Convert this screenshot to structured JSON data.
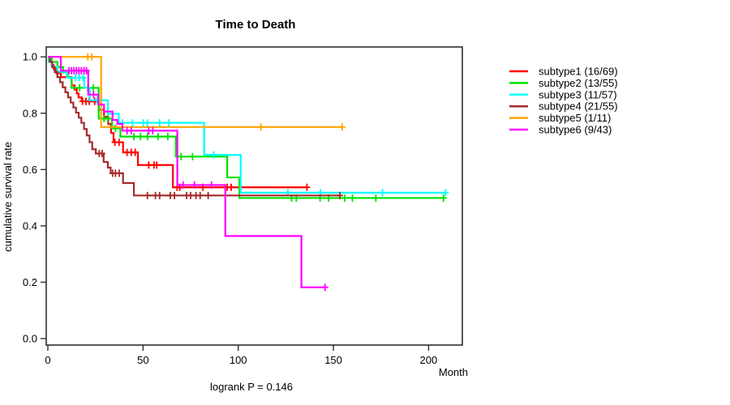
{
  "chart_data": {
    "type": "line",
    "variant": "kaplan-meier-step",
    "title": "Time to Death",
    "xlabel": "Month",
    "ylabel": "cumulative survival rate",
    "annotation": "logrank P = 0.146",
    "x_ticks": [
      0,
      50,
      100,
      150,
      200
    ],
    "y_ticks": [
      0,
      0.2,
      0.4,
      0.6,
      0.8,
      1
    ],
    "xlim": [
      0,
      217
    ],
    "ylim": [
      0,
      1.04
    ],
    "grid": false,
    "legend_position": "right-outside",
    "series": [
      {
        "name": "subtype1 (16/69)",
        "color": "#FF0000",
        "steps": [
          [
            0,
            1
          ],
          [
            1,
            0.986
          ],
          [
            2,
            0.971
          ],
          [
            3,
            0.957
          ],
          [
            4.5,
            0.942
          ],
          [
            6.8,
            0.928
          ],
          [
            12.5,
            0.899
          ],
          [
            14,
            0.884
          ],
          [
            15.2,
            0.87
          ],
          [
            16.1,
            0.856
          ],
          [
            17.8,
            0.842
          ],
          [
            26.7,
            0.812
          ],
          [
            29.5,
            0.787
          ],
          [
            31.7,
            0.762
          ],
          [
            33.2,
            0.73
          ],
          [
            34.5,
            0.697
          ],
          [
            39.5,
            0.661
          ],
          [
            47.3,
            0.616
          ],
          [
            65.7,
            0.537
          ]
        ],
        "end": 136.1,
        "censors": [
          [
            18.2,
            0.842
          ],
          [
            20,
            0.842
          ],
          [
            21.7,
            0.842
          ],
          [
            24.6,
            0.842
          ],
          [
            35.2,
            0.697
          ],
          [
            37.4,
            0.697
          ],
          [
            41.6,
            0.661
          ],
          [
            43.8,
            0.661
          ],
          [
            45.9,
            0.661
          ],
          [
            53,
            0.616
          ],
          [
            55.8,
            0.616
          ],
          [
            57.2,
            0.616
          ],
          [
            67.9,
            0.537
          ],
          [
            69.3,
            0.537
          ],
          [
            81.4,
            0.537
          ],
          [
            94.2,
            0.537
          ],
          [
            96.3,
            0.537
          ],
          [
            136.1,
            0.537
          ]
        ]
      },
      {
        "name": "subtype2 (13/55)",
        "color": "#00E000",
        "steps": [
          [
            0,
            1
          ],
          [
            2,
            0.982
          ],
          [
            5,
            0.964
          ],
          [
            8,
            0.945
          ],
          [
            10.5,
            0.927
          ],
          [
            12.4,
            0.89
          ],
          [
            26.7,
            0.781
          ],
          [
            33.7,
            0.746
          ],
          [
            38.1,
            0.717
          ],
          [
            67.2,
            0.646
          ],
          [
            94.2,
            0.572
          ],
          [
            100.6,
            0.499
          ]
        ],
        "end": 207.8,
        "censors": [
          [
            16.7,
            0.89
          ],
          [
            21,
            0.89
          ],
          [
            23.9,
            0.89
          ],
          [
            29.5,
            0.781
          ],
          [
            31.5,
            0.781
          ],
          [
            35.5,
            0.746
          ],
          [
            45.2,
            0.717
          ],
          [
            48.7,
            0.717
          ],
          [
            52.3,
            0.717
          ],
          [
            57.9,
            0.717
          ],
          [
            63,
            0.717
          ],
          [
            70,
            0.646
          ],
          [
            76,
            0.646
          ],
          [
            128,
            0.499
          ],
          [
            130.5,
            0.499
          ],
          [
            143,
            0.499
          ],
          [
            147.5,
            0.499
          ],
          [
            156,
            0.499
          ],
          [
            160,
            0.499
          ],
          [
            172.3,
            0.499
          ],
          [
            207.8,
            0.499
          ]
        ]
      },
      {
        "name": "subtype3 (11/57)",
        "color": "#00FFFF",
        "steps": [
          [
            0,
            1
          ],
          [
            0.4,
            0.982
          ],
          [
            2,
            0.965
          ],
          [
            5,
            0.947
          ],
          [
            10,
            0.926
          ],
          [
            19.2,
            0.89
          ],
          [
            22,
            0.846
          ],
          [
            31.5,
            0.798
          ],
          [
            37.2,
            0.766
          ],
          [
            82.1,
            0.652
          ],
          [
            101.3,
            0.518
          ]
        ],
        "end": 208.9,
        "censors": [
          [
            14.5,
            0.926
          ],
          [
            16.5,
            0.926
          ],
          [
            18.5,
            0.926
          ],
          [
            26,
            0.846
          ],
          [
            39.2,
            0.766
          ],
          [
            44.4,
            0.766
          ],
          [
            50.1,
            0.766
          ],
          [
            52.3,
            0.766
          ],
          [
            58.7,
            0.766
          ],
          [
            63.6,
            0.766
          ],
          [
            87.1,
            0.652
          ],
          [
            126.1,
            0.518
          ],
          [
            143.2,
            0.518
          ],
          [
            175.8,
            0.518
          ],
          [
            208.9,
            0.518
          ]
        ]
      },
      {
        "name": "subtype4 (21/55)",
        "color": "#A52A2A",
        "steps": [
          [
            0,
            1
          ],
          [
            1,
            0.982
          ],
          [
            2.3,
            0.964
          ],
          [
            3.6,
            0.946
          ],
          [
            5,
            0.928
          ],
          [
            6.4,
            0.91
          ],
          [
            7.8,
            0.892
          ],
          [
            9.2,
            0.874
          ],
          [
            10.6,
            0.856
          ],
          [
            12,
            0.838
          ],
          [
            13.4,
            0.82
          ],
          [
            14.8,
            0.802
          ],
          [
            16.2,
            0.784
          ],
          [
            17.6,
            0.766
          ],
          [
            19,
            0.744
          ],
          [
            20.4,
            0.721
          ],
          [
            21.9,
            0.697
          ],
          [
            23.3,
            0.672
          ],
          [
            25.2,
            0.657
          ],
          [
            29.3,
            0.627
          ],
          [
            31.5,
            0.607
          ],
          [
            33,
            0.587
          ],
          [
            39.5,
            0.552
          ],
          [
            45.2,
            0.508
          ]
        ],
        "end": 153.4,
        "censors": [
          [
            27,
            0.657
          ],
          [
            28.5,
            0.657
          ],
          [
            34,
            0.587
          ],
          [
            35.5,
            0.587
          ],
          [
            37.5,
            0.587
          ],
          [
            52.3,
            0.508
          ],
          [
            56.5,
            0.508
          ],
          [
            58.7,
            0.508
          ],
          [
            64.3,
            0.508
          ],
          [
            66.5,
            0.508
          ],
          [
            72.9,
            0.508
          ],
          [
            75,
            0.508
          ],
          [
            77.8,
            0.508
          ],
          [
            80,
            0.508
          ],
          [
            84.2,
            0.508
          ],
          [
            153.4,
            0.508
          ]
        ]
      },
      {
        "name": "subtype5 (1/11)",
        "color": "#FFA500",
        "steps": [
          [
            0,
            1
          ],
          [
            28,
            0.751
          ]
        ],
        "end": 154.6,
        "censors": [
          [
            21,
            1
          ],
          [
            23.1,
            1
          ],
          [
            111.9,
            0.751
          ],
          [
            154.6,
            0.751
          ]
        ]
      },
      {
        "name": "subtype6 (9/43)",
        "color": "#FF00FF",
        "steps": [
          [
            0,
            1
          ],
          [
            6.8,
            0.951
          ],
          [
            21.2,
            0.866
          ],
          [
            26.5,
            0.831
          ],
          [
            29.5,
            0.806
          ],
          [
            34,
            0.776
          ],
          [
            36.5,
            0.762
          ],
          [
            39.2,
            0.738
          ],
          [
            68,
            0.545
          ],
          [
            93.2,
            0.364
          ],
          [
            133.2,
            0.182
          ]
        ],
        "end": 145.6,
        "censors": [
          [
            11.1,
            0.951
          ],
          [
            12.4,
            0.951
          ],
          [
            13.7,
            0.951
          ],
          [
            15,
            0.951
          ],
          [
            16.3,
            0.951
          ],
          [
            17.6,
            0.951
          ],
          [
            19,
            0.951
          ],
          [
            20.3,
            0.951
          ],
          [
            24,
            0.866
          ],
          [
            41.6,
            0.738
          ],
          [
            43.8,
            0.738
          ],
          [
            53,
            0.738
          ],
          [
            55.1,
            0.738
          ],
          [
            71,
            0.545
          ],
          [
            77,
            0.545
          ],
          [
            86,
            0.545
          ],
          [
            145.6,
            0.182
          ]
        ]
      }
    ]
  }
}
